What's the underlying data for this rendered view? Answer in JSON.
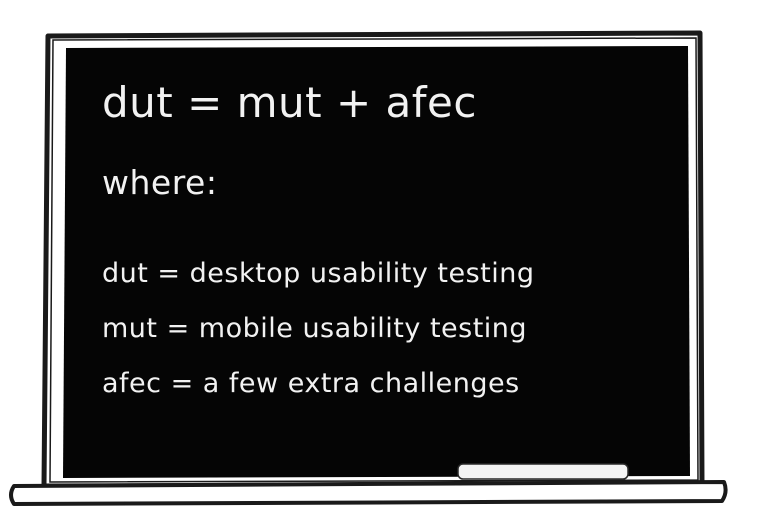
{
  "chalkboard": {
    "equation": "dut = mut + afec",
    "where_label": "where:",
    "definitions": [
      "dut = desktop usability testing",
      "mut = mobile usability testing",
      "afec = a few extra challenges"
    ]
  },
  "colors": {
    "board": "#050505",
    "chalk": "#f2f2f2",
    "frame_outline": "#1a1a1a",
    "background": "#ffffff"
  }
}
